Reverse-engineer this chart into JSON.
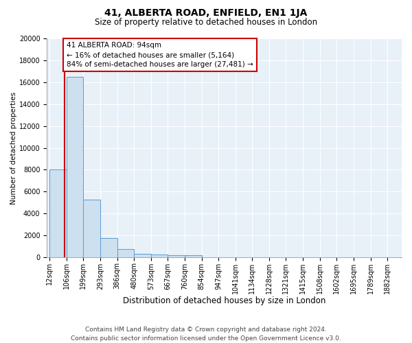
{
  "title": "41, ALBERTA ROAD, ENFIELD, EN1 1JA",
  "subtitle": "Size of property relative to detached houses in London",
  "xlabel": "Distribution of detached houses by size in London",
  "ylabel": "Number of detached properties",
  "bin_edges": [
    12,
    106,
    199,
    293,
    386,
    480,
    573,
    667,
    760,
    854,
    947,
    1041,
    1134,
    1228,
    1321,
    1415,
    1508,
    1602,
    1695,
    1789,
    1882
  ],
  "bin_labels": [
    "12sqm",
    "106sqm",
    "199sqm",
    "293sqm",
    "386sqm",
    "480sqm",
    "573sqm",
    "667sqm",
    "760sqm",
    "854sqm",
    "947sqm",
    "1041sqm",
    "1134sqm",
    "1228sqm",
    "1321sqm",
    "1415sqm",
    "1508sqm",
    "1602sqm",
    "1695sqm",
    "1789sqm",
    "1882sqm"
  ],
  "counts": [
    8000,
    16500,
    5250,
    1750,
    750,
    300,
    210,
    180,
    150,
    10,
    10,
    5,
    5,
    3,
    2,
    2,
    2,
    2,
    1,
    1
  ],
  "bar_color": "#cce0f0",
  "bar_edge_color": "#5b9bd5",
  "property_size": 94,
  "property_line_color": "#cc0000",
  "annotation_text": "41 ALBERTA ROAD: 94sqm\n← 16% of detached houses are smaller (5,164)\n84% of semi-detached houses are larger (27,481) →",
  "annotation_box_color": "#ffffff",
  "annotation_box_edge_color": "#cc0000",
  "ylim": [
    0,
    20000
  ],
  "yticks": [
    0,
    2000,
    4000,
    6000,
    8000,
    10000,
    12000,
    14000,
    16000,
    18000,
    20000
  ],
  "background_color": "#e8f0f8",
  "footer": "Contains HM Land Registry data © Crown copyright and database right 2024.\nContains public sector information licensed under the Open Government Licence v3.0.",
  "title_fontsize": 10,
  "subtitle_fontsize": 8.5,
  "xlabel_fontsize": 8.5,
  "ylabel_fontsize": 7.5,
  "tick_fontsize": 7,
  "footer_fontsize": 6.5,
  "annotation_fontsize": 7.5
}
